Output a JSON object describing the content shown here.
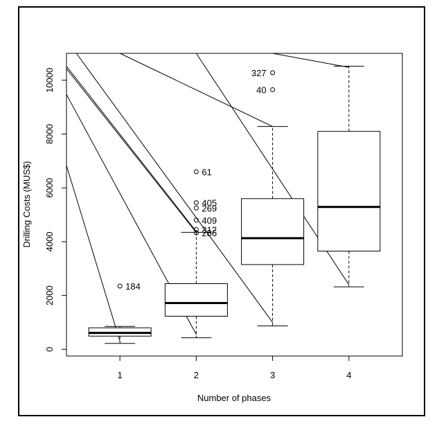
{
  "chart_data": {
    "type": "boxplot",
    "xlabel": "Number of phases",
    "ylabel": "Drilling Costs (MUS$)",
    "categories": [
      "1",
      "2",
      "3",
      "4"
    ],
    "ylim": [
      -250,
      11000
    ],
    "yticks": [
      0,
      2000,
      4000,
      6000,
      8000,
      10000
    ],
    "boxes": [
      {
        "category": "1",
        "whisker_low": 220,
        "q1": 490,
        "median": 610,
        "q3": 800,
        "whisker_high": 850
      },
      {
        "category": "2",
        "whisker_low": 430,
        "q1": 1230,
        "median": 1720,
        "q3": 2440,
        "whisker_high": 4350
      },
      {
        "category": "3",
        "whisker_low": 870,
        "q1": 3150,
        "median": 4130,
        "q3": 5600,
        "whisker_high": 8280
      },
      {
        "category": "4",
        "whisker_low": 2320,
        "q1": 3650,
        "median": 5290,
        "q3": 8100,
        "whisker_high": 10520
      }
    ],
    "outliers": [
      {
        "category": "1",
        "value": 2350,
        "label": "184"
      },
      {
        "category": "2",
        "value": 6600,
        "label": "61"
      },
      {
        "category": "2",
        "value": 5450,
        "label": "405"
      },
      {
        "category": "2",
        "value": 5250,
        "label": "269"
      },
      {
        "category": "2",
        "value": 4800,
        "label": "409"
      },
      {
        "category": "2",
        "value": 4450,
        "label": "312"
      },
      {
        "category": "2",
        "value": 4330,
        "label": "286"
      },
      {
        "category": "3",
        "value": 10280,
        "label": "327"
      },
      {
        "category": "3",
        "value": 9650,
        "label": "40"
      }
    ],
    "overlay_lines": [
      {
        "x1": 0.3,
        "y1": 6830,
        "x2": 1.0,
        "y2": 300
      },
      {
        "x1": 0.3,
        "y1": 9470,
        "x2": 2.0,
        "y2": 550
      },
      {
        "x1": 0.3,
        "y1": 10520,
        "x2": 2.0,
        "y2": 4380
      },
      {
        "x1": 0.3,
        "y1": 10430,
        "x2": 2.0,
        "y2": 4340
      },
      {
        "x1": 0.43,
        "y1": 11000,
        "x2": 3.0,
        "y2": 1000
      },
      {
        "x1": 1.0,
        "y1": 11000,
        "x2": 3.0,
        "y2": 8280
      },
      {
        "x1": 2.0,
        "y1": 11000,
        "x2": 4.0,
        "y2": 2400
      },
      {
        "x1": 3.0,
        "y1": 11000,
        "x2": 4.0,
        "y2": 10480
      }
    ],
    "colors": {
      "box": "#000000",
      "background": "#ffffff"
    }
  }
}
